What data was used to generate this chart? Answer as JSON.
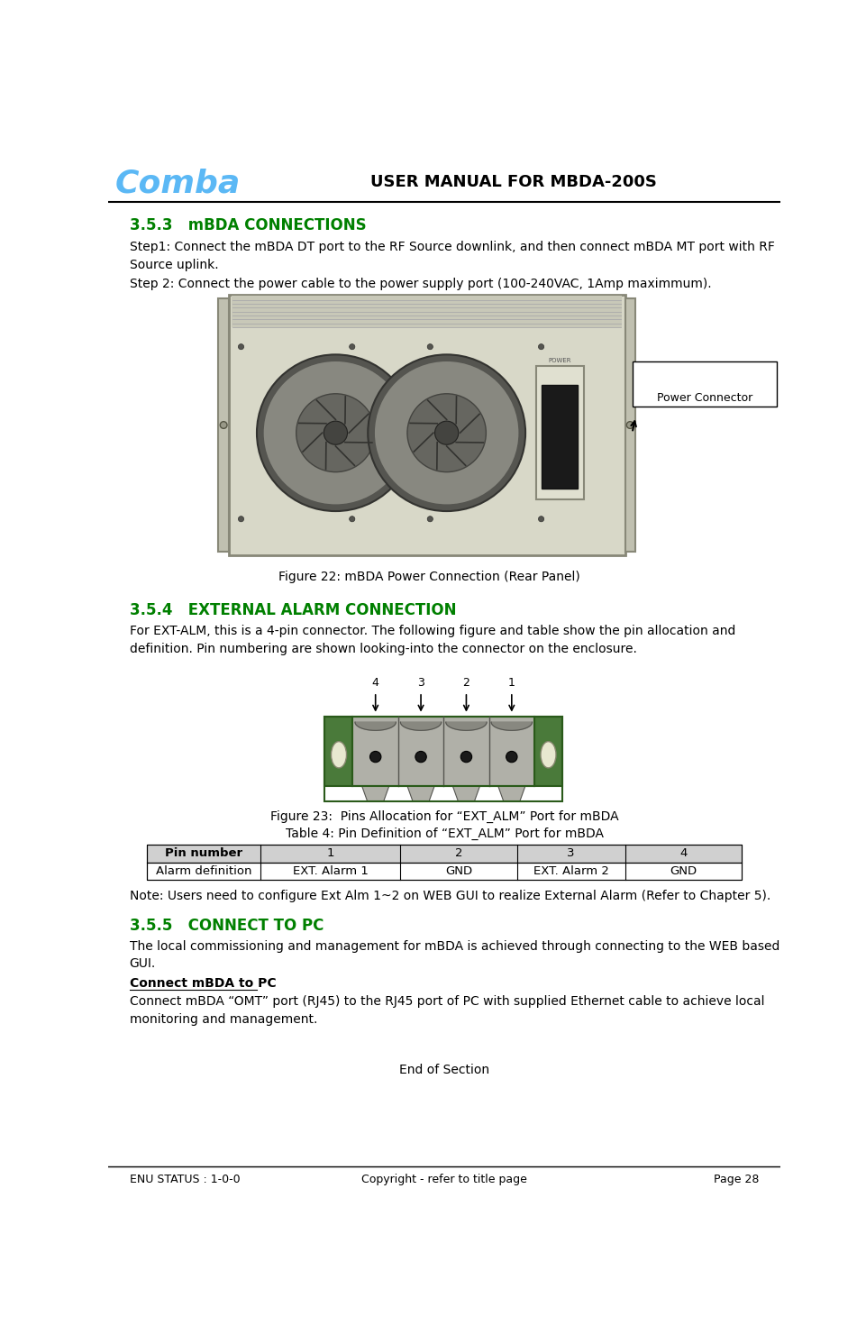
{
  "page_width": 9.62,
  "page_height": 14.91,
  "bg_color": "#ffffff",
  "header_title": "USER MANUAL FOR MBDA-200S",
  "header_title_fontsize": 13,
  "header_logo_text": "Comba",
  "header_logo_color": "#5bb8f5",
  "section_353_title": "3.5.3   mBDA CONNECTIONS",
  "section_color": "#008000",
  "section_fontsize": 12,
  "step1_text": "Step1: Connect the mBDA DT port to the RF Source downlink, and then connect mBDA MT port with RF\nSource uplink.",
  "step2_text": "Step 2: Connect the power cable to the power supply port (100-240VAC, 1Amp maximmum).",
  "fig22_caption": "Figure 22: mBDA Power Connection (Rear Panel)",
  "power_connector_label": "Power Connector",
  "section_354_title": "3.5.4   EXTERNAL ALARM CONNECTION",
  "section_354_text": "For EXT-ALM, this is a 4-pin connector. The following figure and table show the pin allocation and\ndefinition. Pin numbering are shown looking-into the connector on the enclosure.",
  "fig23_caption": "Figure 23:  Pins Allocation for “EXT_ALM” Port for mBDA",
  "table_title": "Table 4: Pin Definition of “EXT_ALM” Port for mBDA",
  "table_headers": [
    "Pin number",
    "1",
    "2",
    "3",
    "4"
  ],
  "table_row": [
    "Alarm definition",
    "EXT. Alarm 1",
    "GND",
    "EXT. Alarm 2",
    "GND"
  ],
  "note_text": "Note: Users need to configure Ext Alm 1~2 on WEB GUI to realize External Alarm (Refer to Chapter 5).",
  "section_355_title": "3.5.5   CONNECT TO PC",
  "section_355_text": "The local commissioning and management for mBDA is achieved through connecting to the WEB based\nGUI.",
  "connect_mbda_title": "Connect mBDA to PC",
  "connect_mbda_text": "Connect mBDA “OMT” port (RJ45) to the RJ45 port of PC with supplied Ethernet cable to achieve local\nmonitoring and management.",
  "end_of_section": "End of Section",
  "footer_left": "ENU STATUS : 1-0-0",
  "footer_center": "Copyright - refer to title page",
  "footer_right": "Page 28",
  "body_fontsize": 10,
  "body_color": "#000000",
  "footer_fontsize": 9,
  "table_fontsize": 9.5
}
